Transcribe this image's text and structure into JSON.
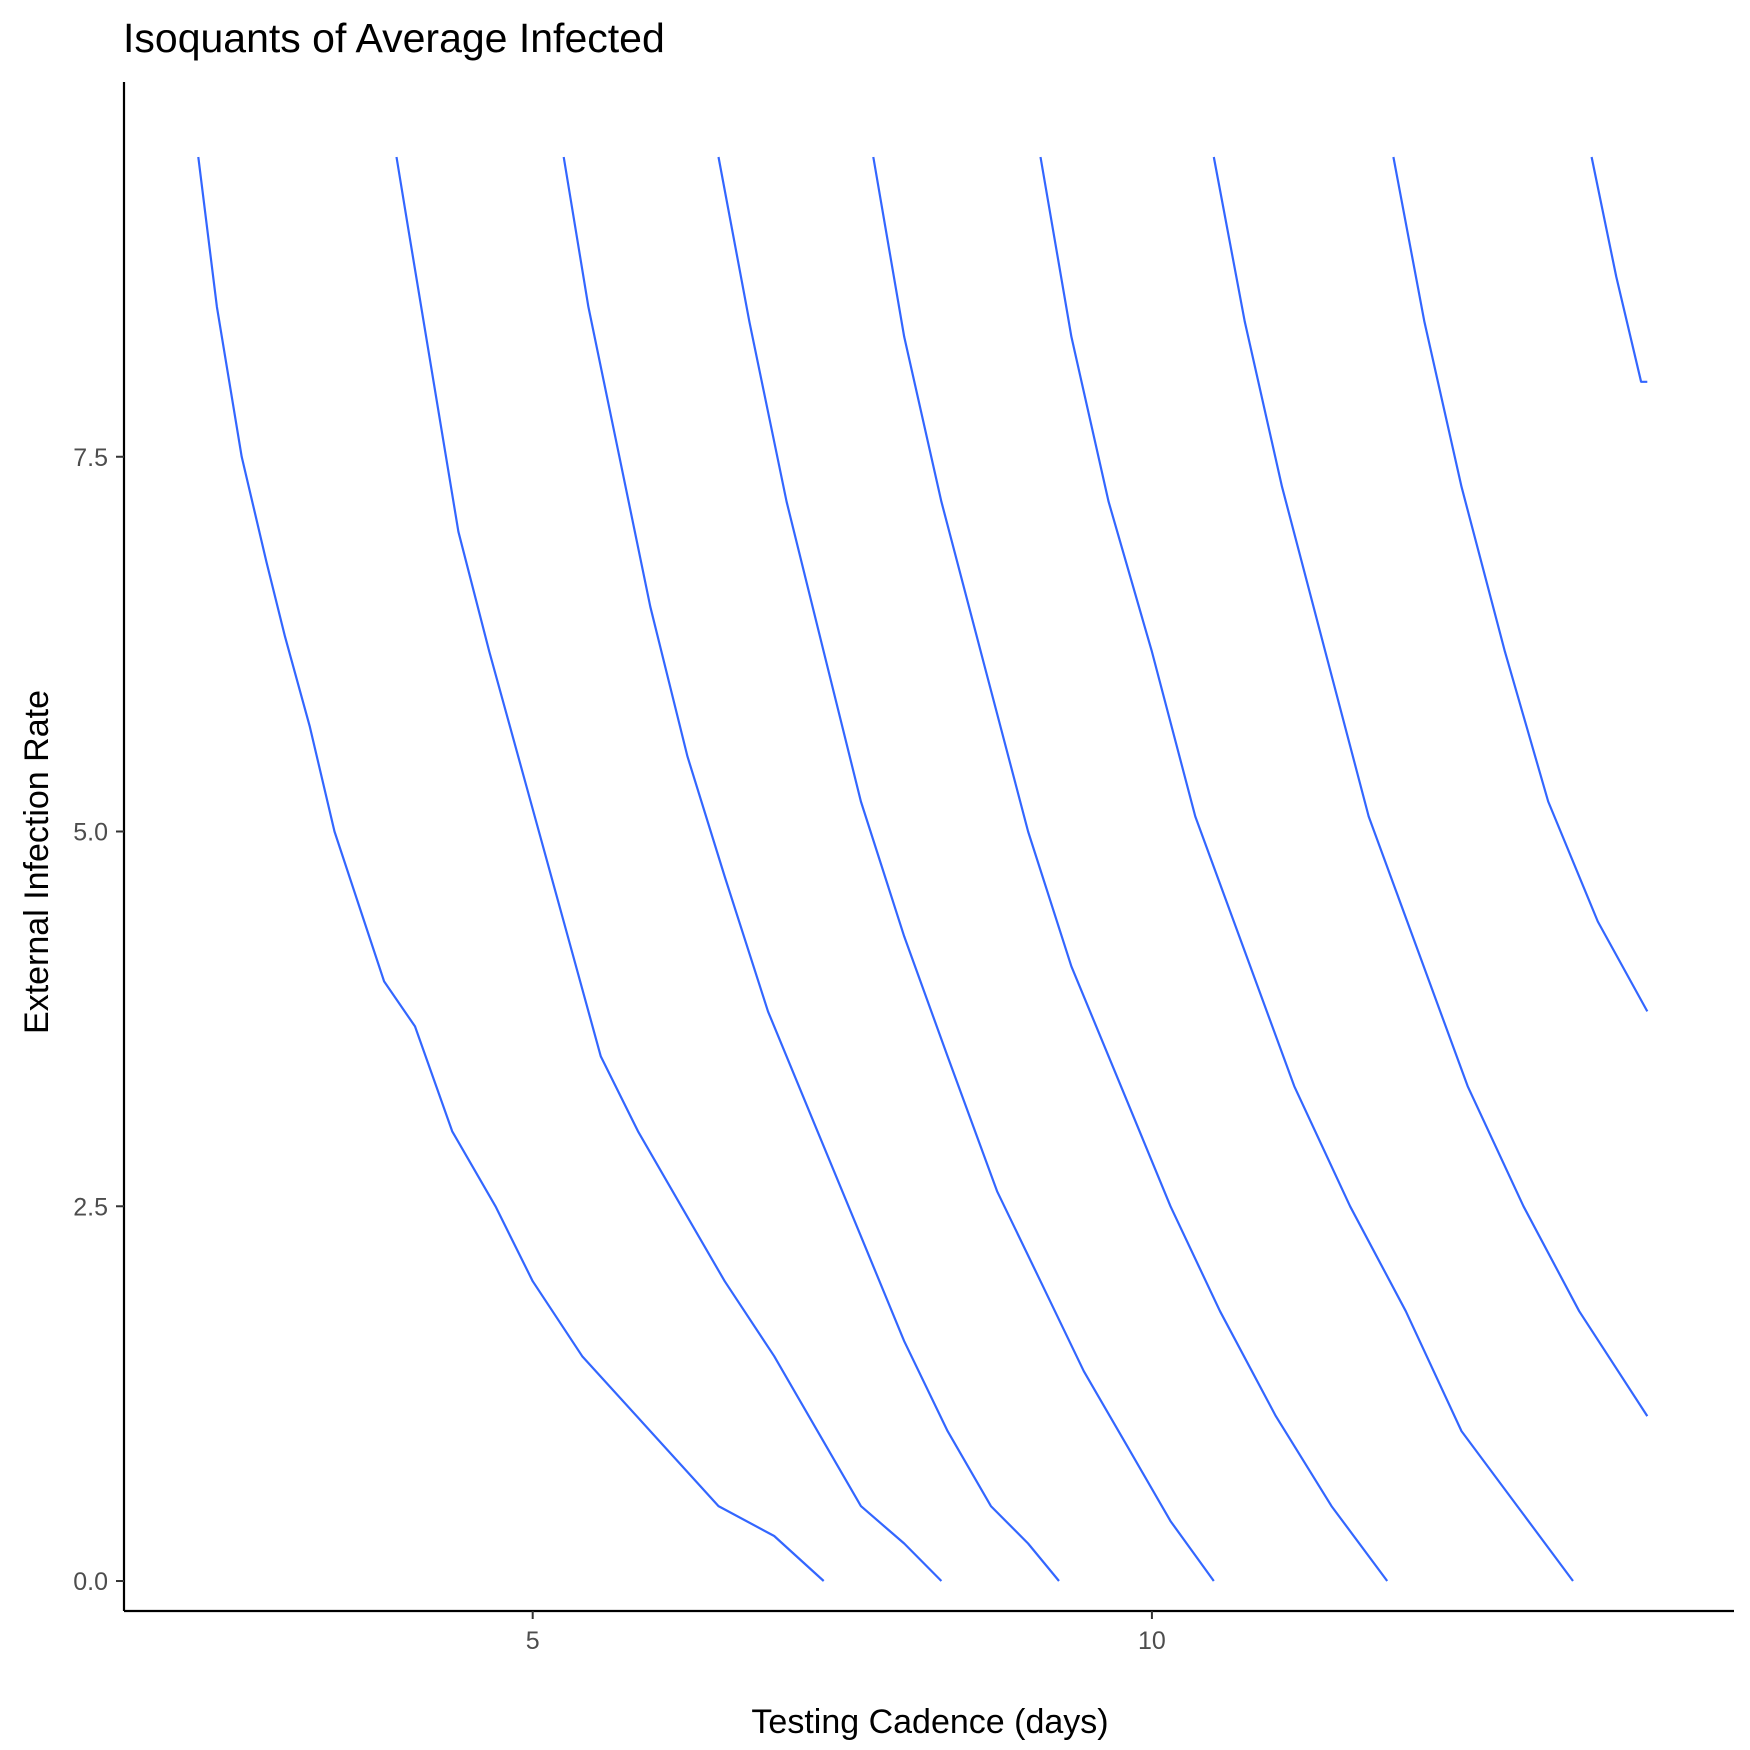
{
  "chart_data": {
    "type": "line",
    "title": "Isoquants of Average Infected",
    "xlabel": "Testing Cadence (days)",
    "ylabel": "External Infection Rate",
    "xlim": [
      1.7,
      14.7
    ],
    "ylim": [
      -0.2,
      10
    ],
    "xticks": [
      5,
      10
    ],
    "yticks": [
      0.0,
      2.5,
      5.0,
      7.5
    ],
    "xtick_labels": [
      "5",
      "10"
    ],
    "ytick_labels": [
      "0.0",
      "2.5",
      "5.0",
      "7.5"
    ],
    "grid": false,
    "legend": "none",
    "line_color": "#3366FF",
    "series": [
      {
        "x": [
          2.3,
          2.45,
          2.65,
          2.85,
          3.0,
          3.2,
          3.4,
          3.6,
          3.8,
          4.05,
          4.35,
          4.7,
          5.0,
          5.4,
          5.95,
          6.5,
          6.95,
          7.35
        ],
        "y": [
          9.5,
          8.5,
          7.5,
          6.8,
          6.3,
          5.7,
          5.0,
          4.5,
          4.0,
          3.7,
          3.0,
          2.5,
          2.0,
          1.5,
          1.0,
          0.5,
          0.3,
          0.0
        ]
      },
      {
        "x": [
          3.9,
          4.0,
          4.2,
          4.4,
          4.65,
          4.95,
          5.25,
          5.55,
          5.85,
          6.2,
          6.55,
          6.95,
          7.3,
          7.65,
          8.0,
          8.3
        ],
        "y": [
          9.5,
          9.0,
          8.0,
          7.0,
          6.2,
          5.3,
          4.4,
          3.5,
          3.0,
          2.5,
          2.0,
          1.5,
          1.0,
          0.5,
          0.25,
          0.0
        ]
      },
      {
        "x": [
          5.25,
          5.45,
          5.7,
          5.95,
          6.25,
          6.55,
          6.9,
          7.3,
          7.65,
          8.0,
          8.35,
          8.7,
          9.0,
          9.25
        ],
        "y": [
          9.5,
          8.5,
          7.5,
          6.5,
          5.5,
          4.7,
          3.8,
          3.0,
          2.3,
          1.6,
          1.0,
          0.5,
          0.25,
          0.0
        ]
      },
      {
        "x": [
          6.5,
          6.75,
          7.05,
          7.35,
          7.65,
          8.0,
          8.35,
          8.75,
          9.1,
          9.45,
          9.8,
          10.15,
          10.5
        ],
        "y": [
          9.5,
          8.4,
          7.2,
          6.2,
          5.2,
          4.3,
          3.5,
          2.6,
          2.0,
          1.4,
          0.9,
          0.4,
          0.0
        ]
      },
      {
        "x": [
          7.75,
          8.0,
          8.3,
          8.65,
          9.0,
          9.35,
          9.75,
          10.15,
          10.55,
          11.0,
          11.45,
          11.9
        ],
        "y": [
          9.5,
          8.3,
          7.2,
          6.1,
          5.0,
          4.1,
          3.3,
          2.5,
          1.8,
          1.1,
          0.5,
          0.0
        ]
      },
      {
        "x": [
          9.1,
          9.35,
          9.65,
          10.0,
          10.35,
          10.75,
          11.15,
          11.6,
          12.05,
          12.5,
          12.95,
          13.4
        ],
        "y": [
          9.5,
          8.3,
          7.2,
          6.2,
          5.1,
          4.2,
          3.3,
          2.5,
          1.8,
          1.0,
          0.5,
          0.0
        ]
      },
      {
        "x": [
          10.5,
          10.75,
          11.05,
          11.4,
          11.75,
          12.15,
          12.55,
          13.0,
          13.45,
          14.0
        ],
        "y": [
          9.5,
          8.4,
          7.3,
          6.2,
          5.1,
          4.2,
          3.3,
          2.5,
          1.8,
          1.1
        ]
      },
      {
        "x": [
          11.95,
          12.2,
          12.5,
          12.85,
          13.2,
          13.6,
          14.0
        ],
        "y": [
          9.5,
          8.4,
          7.3,
          6.2,
          5.2,
          4.4,
          3.8
        ]
      },
      {
        "x": [
          13.55,
          13.75,
          13.95,
          14.0
        ],
        "y": [
          9.5,
          8.7,
          8.0,
          8.0
        ]
      }
    ]
  }
}
